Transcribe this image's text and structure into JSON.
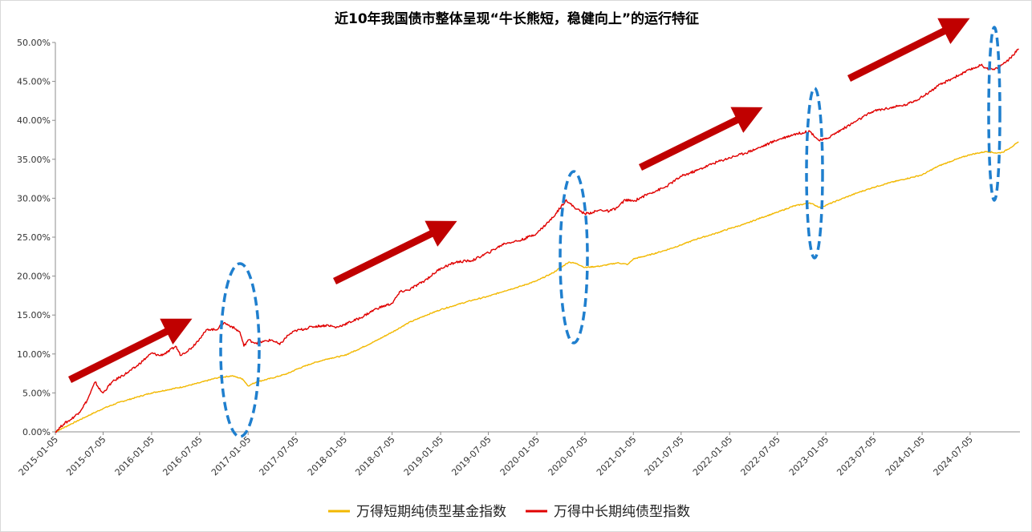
{
  "chart_data": {
    "type": "line",
    "title": "近10年我国债市整体呈现“牛长熊短，稳健向上”的运行特征",
    "xlabel": "",
    "ylabel": "",
    "ylim": [
      0,
      50
    ],
    "yticks": [
      "0.00%",
      "5.00%",
      "10.00%",
      "15.00%",
      "20.00%",
      "25.00%",
      "30.00%",
      "35.00%",
      "40.00%",
      "45.00%",
      "50.00%"
    ],
    "xticks": [
      "2015-01-05",
      "2015-07-05",
      "2016-01-05",
      "2016-07-05",
      "2017-01-05",
      "2017-07-05",
      "2018-01-05",
      "2018-07-05",
      "2019-01-05",
      "2019-07-05",
      "2020-01-05",
      "2020-07-05",
      "2021-01-05",
      "2021-07-05",
      "2022-01-05",
      "2022-07-05",
      "2023-01-05",
      "2023-07-05",
      "2024-01-05",
      "2024-07-05"
    ],
    "legend_position": "bottom",
    "series": [
      {
        "name": "万得短期纯债型基金指数",
        "color": "#f2b800",
        "points": [
          [
            "2015-01-05",
            0.0
          ],
          [
            "2015-03-05",
            1.0
          ],
          [
            "2015-05-05",
            2.0
          ],
          [
            "2015-07-05",
            3.0
          ],
          [
            "2015-09-05",
            3.8
          ],
          [
            "2015-11-05",
            4.4
          ],
          [
            "2016-01-05",
            5.0
          ],
          [
            "2016-03-05",
            5.4
          ],
          [
            "2016-05-05",
            5.8
          ],
          [
            "2016-07-05",
            6.3
          ],
          [
            "2016-09-05",
            6.9
          ],
          [
            "2016-11-05",
            7.2
          ],
          [
            "2016-12-15",
            6.8
          ],
          [
            "2017-01-05",
            5.9
          ],
          [
            "2017-02-05",
            6.4
          ],
          [
            "2017-04-05",
            6.9
          ],
          [
            "2017-06-05",
            7.5
          ],
          [
            "2017-07-05",
            8.0
          ],
          [
            "2017-09-05",
            8.8
          ],
          [
            "2017-11-05",
            9.4
          ],
          [
            "2018-01-05",
            9.8
          ],
          [
            "2018-03-05",
            10.7
          ],
          [
            "2018-05-05",
            11.7
          ],
          [
            "2018-07-05",
            12.8
          ],
          [
            "2018-09-05",
            14.0
          ],
          [
            "2018-11-05",
            14.9
          ],
          [
            "2019-01-05",
            15.7
          ],
          [
            "2019-03-05",
            16.3
          ],
          [
            "2019-05-05",
            16.9
          ],
          [
            "2019-07-05",
            17.4
          ],
          [
            "2019-09-05",
            18.1
          ],
          [
            "2019-11-05",
            18.7
          ],
          [
            "2020-01-05",
            19.4
          ],
          [
            "2020-03-05",
            20.4
          ],
          [
            "2020-05-05",
            21.8
          ],
          [
            "2020-06-05",
            21.6
          ],
          [
            "2020-07-05",
            21.1
          ],
          [
            "2020-09-05",
            21.3
          ],
          [
            "2020-11-05",
            21.7
          ],
          [
            "2020-12-15",
            21.5
          ],
          [
            "2021-01-05",
            22.2
          ],
          [
            "2021-03-05",
            22.7
          ],
          [
            "2021-05-05",
            23.3
          ],
          [
            "2021-07-05",
            24.0
          ],
          [
            "2021-09-05",
            24.8
          ],
          [
            "2021-11-05",
            25.4
          ],
          [
            "2022-01-05",
            26.1
          ],
          [
            "2022-03-05",
            26.7
          ],
          [
            "2022-05-05",
            27.5
          ],
          [
            "2022-07-05",
            28.2
          ],
          [
            "2022-09-05",
            29.0
          ],
          [
            "2022-11-05",
            29.4
          ],
          [
            "2022-12-15",
            28.8
          ],
          [
            "2023-01-05",
            29.1
          ],
          [
            "2023-03-05",
            29.9
          ],
          [
            "2023-05-05",
            30.7
          ],
          [
            "2023-07-05",
            31.4
          ],
          [
            "2023-09-05",
            32.0
          ],
          [
            "2023-11-05",
            32.5
          ],
          [
            "2024-01-05",
            33.0
          ],
          [
            "2024-03-05",
            34.1
          ],
          [
            "2024-05-05",
            34.9
          ],
          [
            "2024-07-05",
            35.6
          ],
          [
            "2024-09-05",
            36.0
          ],
          [
            "2024-10-15",
            35.8
          ],
          [
            "2024-11-05",
            35.9
          ],
          [
            "2024-12-05",
            36.5
          ],
          [
            "2025-01-05",
            37.2
          ]
        ]
      },
      {
        "name": "万得中长期纯债型指数",
        "color": "#e00000",
        "points": [
          [
            "2015-01-05",
            0.0
          ],
          [
            "2015-02-05",
            1.0
          ],
          [
            "2015-03-05",
            1.6
          ],
          [
            "2015-04-05",
            2.5
          ],
          [
            "2015-05-05",
            4.0
          ],
          [
            "2015-06-05",
            6.4
          ],
          [
            "2015-06-25",
            5.3
          ],
          [
            "2015-07-05",
            5.0
          ],
          [
            "2015-08-05",
            6.3
          ],
          [
            "2015-09-05",
            7.0
          ],
          [
            "2015-10-05",
            7.6
          ],
          [
            "2015-11-05",
            8.3
          ],
          [
            "2015-12-05",
            9.2
          ],
          [
            "2016-01-05",
            10.1
          ],
          [
            "2016-02-05",
            9.8
          ],
          [
            "2016-03-05",
            10.2
          ],
          [
            "2016-04-05",
            11.0
          ],
          [
            "2016-04-25",
            9.8
          ],
          [
            "2016-05-05",
            10.1
          ],
          [
            "2016-06-05",
            10.8
          ],
          [
            "2016-07-05",
            12.0
          ],
          [
            "2016-08-05",
            13.2
          ],
          [
            "2016-09-05",
            13.1
          ],
          [
            "2016-10-05",
            14.0
          ],
          [
            "2016-11-05",
            13.5
          ],
          [
            "2016-12-05",
            12.8
          ],
          [
            "2016-12-20",
            11.0
          ],
          [
            "2017-01-05",
            11.8
          ],
          [
            "2017-02-05",
            11.4
          ],
          [
            "2017-03-05",
            11.6
          ],
          [
            "2017-04-05",
            11.8
          ],
          [
            "2017-05-05",
            11.2
          ],
          [
            "2017-06-05",
            12.4
          ],
          [
            "2017-07-05",
            13.0
          ],
          [
            "2017-08-05",
            13.2
          ],
          [
            "2017-09-05",
            13.5
          ],
          [
            "2017-10-05",
            13.6
          ],
          [
            "2017-11-05",
            13.7
          ],
          [
            "2017-12-05",
            13.4
          ],
          [
            "2018-01-05",
            13.8
          ],
          [
            "2018-03-05",
            14.6
          ],
          [
            "2018-05-05",
            15.8
          ],
          [
            "2018-07-05",
            16.5
          ],
          [
            "2018-08-05",
            18.0
          ],
          [
            "2018-09-05",
            18.2
          ],
          [
            "2018-11-05",
            19.4
          ],
          [
            "2019-01-05",
            21.0
          ],
          [
            "2019-03-05",
            21.8
          ],
          [
            "2019-05-05",
            22.0
          ],
          [
            "2019-07-05",
            23.0
          ],
          [
            "2019-09-05",
            24.2
          ],
          [
            "2019-11-05",
            24.6
          ],
          [
            "2020-01-05",
            25.5
          ],
          [
            "2020-03-05",
            27.5
          ],
          [
            "2020-04-25",
            29.8
          ],
          [
            "2020-05-05",
            29.4
          ],
          [
            "2020-06-05",
            28.6
          ],
          [
            "2020-07-05",
            28.0
          ],
          [
            "2020-08-05",
            28.2
          ],
          [
            "2020-09-05",
            28.5
          ],
          [
            "2020-10-05",
            28.3
          ],
          [
            "2020-11-05",
            28.8
          ],
          [
            "2020-12-05",
            29.8
          ],
          [
            "2021-01-05",
            29.6
          ],
          [
            "2021-03-05",
            30.6
          ],
          [
            "2021-05-05",
            31.4
          ],
          [
            "2021-07-05",
            32.8
          ],
          [
            "2021-09-05",
            33.6
          ],
          [
            "2021-11-05",
            34.5
          ],
          [
            "2022-01-05",
            35.2
          ],
          [
            "2022-03-05",
            35.8
          ],
          [
            "2022-05-05",
            36.6
          ],
          [
            "2022-07-05",
            37.5
          ],
          [
            "2022-09-05",
            38.2
          ],
          [
            "2022-11-05",
            38.6
          ],
          [
            "2022-12-10",
            37.4
          ],
          [
            "2023-01-05",
            37.6
          ],
          [
            "2023-03-05",
            38.8
          ],
          [
            "2023-05-05",
            40.0
          ],
          [
            "2023-07-05",
            41.2
          ],
          [
            "2023-09-05",
            41.6
          ],
          [
            "2023-11-05",
            42.0
          ],
          [
            "2024-01-05",
            43.0
          ],
          [
            "2024-03-05",
            44.4
          ],
          [
            "2024-05-05",
            45.5
          ],
          [
            "2024-07-05",
            46.5
          ],
          [
            "2024-08-15",
            47.1
          ],
          [
            "2024-09-05",
            46.7
          ],
          [
            "2024-10-05",
            46.5
          ],
          [
            "2024-11-05",
            47.2
          ],
          [
            "2024-12-05",
            48.0
          ],
          [
            "2025-01-05",
            49.2
          ]
        ]
      }
    ]
  }
}
